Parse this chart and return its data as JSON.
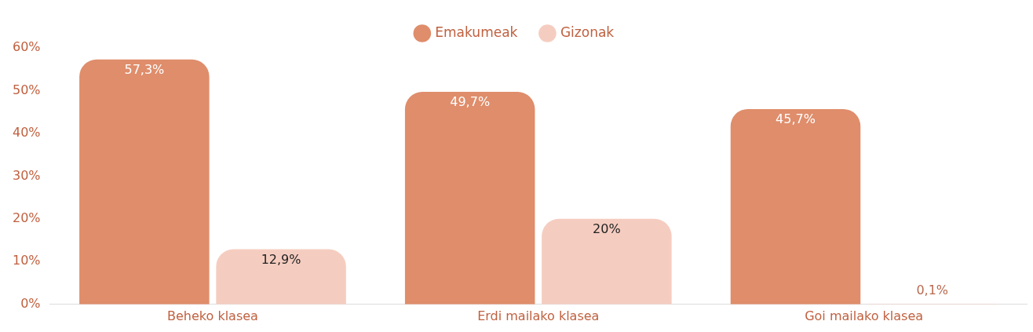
{
  "chart_data": {
    "type": "bar",
    "categories": [
      "Beheko klasea",
      "Erdi mailako klasea",
      "Goi mailako klasea"
    ],
    "series": [
      {
        "name": "Emakumeak",
        "color": "#df8d6b",
        "values": [
          57.3,
          49.7,
          45.7
        ],
        "value_labels": [
          "57,3%",
          "49,7%",
          "45,7%"
        ]
      },
      {
        "name": "Gizonak",
        "color": "#f5cdc0",
        "values": [
          12.9,
          20,
          0.1
        ],
        "value_labels": [
          "12,9%",
          "20%",
          "0,1%"
        ]
      }
    ],
    "ylim": [
      0,
      60
    ],
    "yticks": [
      {
        "value": 0,
        "label": "0%"
      },
      {
        "value": 10,
        "label": "10%"
      },
      {
        "value": 20,
        "label": "20%"
      },
      {
        "value": 30,
        "label": "30%"
      },
      {
        "value": 40,
        "label": "40%"
      },
      {
        "value": 50,
        "label": "50%"
      },
      {
        "value": 60,
        "label": "60%"
      }
    ],
    "grid": false,
    "legend": "top"
  }
}
